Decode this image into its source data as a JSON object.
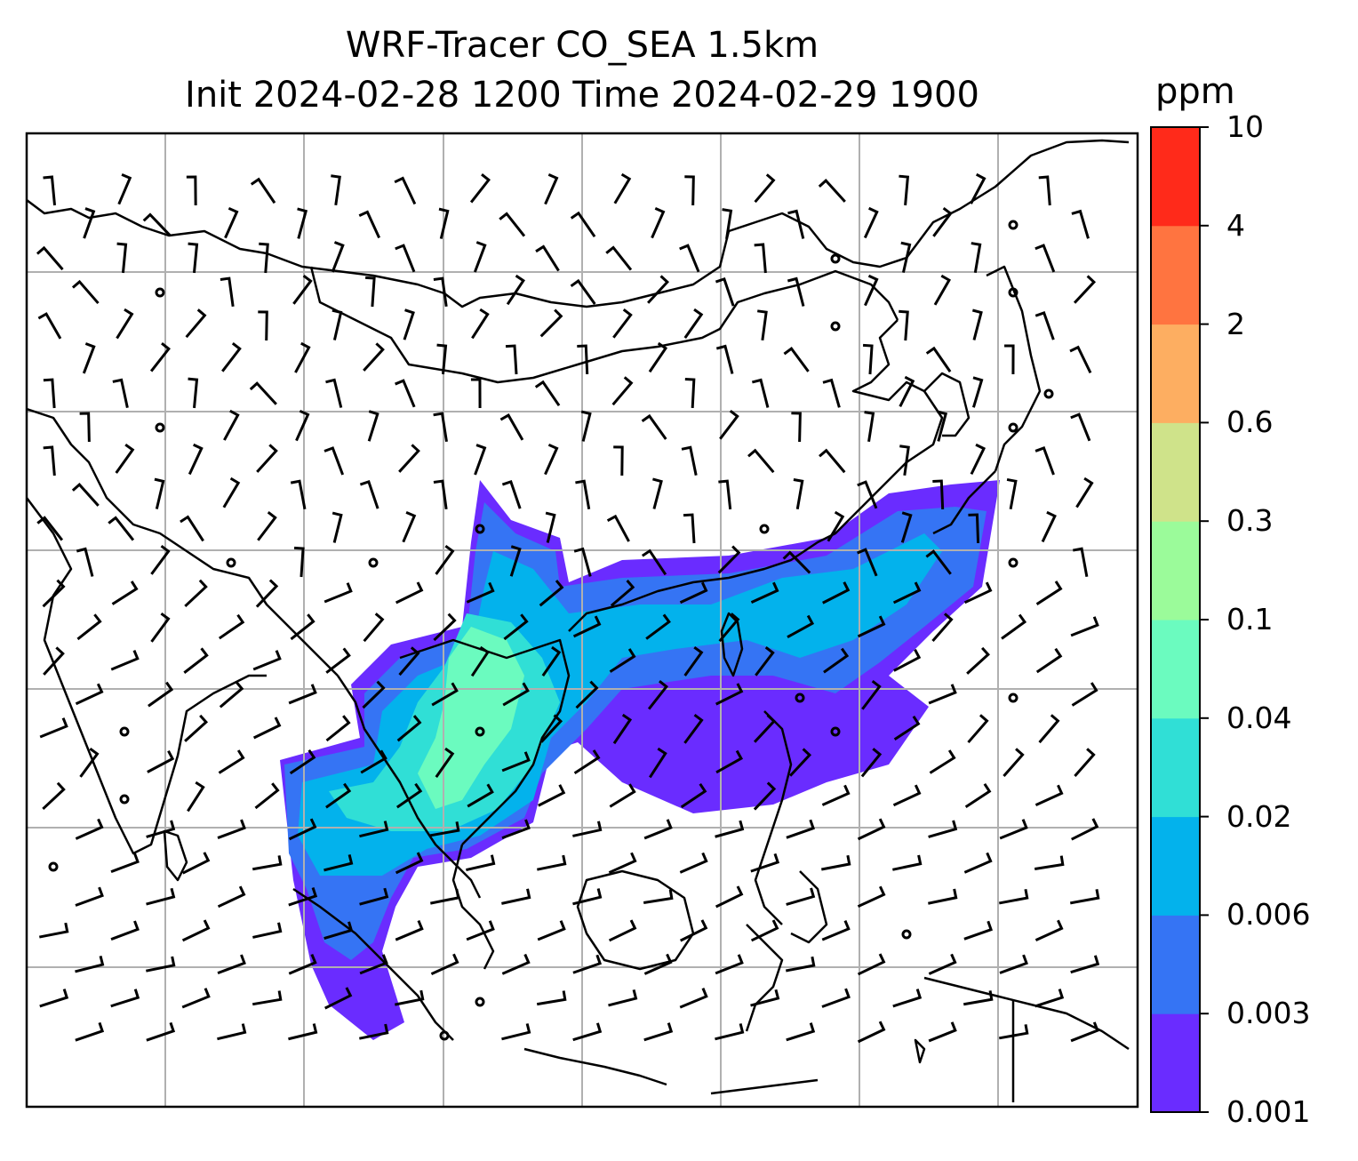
{
  "title": {
    "line1": "WRF-Tracer CO_SEA 1.5km",
    "line2": "Init 2024-02-28 1200 Time 2024-02-29 1900"
  },
  "colorbar": {
    "unit": "ppm",
    "levels": [
      "0.001",
      "0.003",
      "0.006",
      "0.02",
      "0.04",
      "0.1",
      "0.3",
      "0.6",
      "2",
      "4",
      "10"
    ],
    "colors": [
      "#6a2cff",
      "#3574f4",
      "#03b2ec",
      "#30dfd6",
      "#6bfbbf",
      "#9bfb9a",
      "#cfe38a",
      "#fdae61",
      "#ff7440",
      "#ff2a1a"
    ]
  },
  "map": {
    "gridlines": true,
    "coastline_color": "#000000",
    "grid_color": "#b0b0b0",
    "wind_barbs": true
  }
}
